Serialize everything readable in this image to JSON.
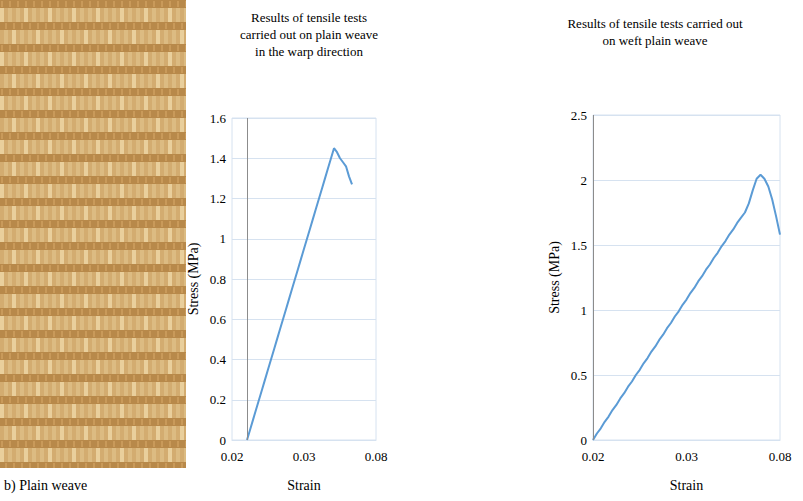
{
  "caption": "b) Plain weave",
  "chart_data": [
    {
      "type": "line",
      "title": "Results of tensile tests carried out on plain weave in the warp direction",
      "x_label": "Strain",
      "y_label": "Stress (MPa)",
      "categories": [
        "0.02",
        null,
        null,
        null,
        null,
        null,
        null,
        null,
        null,
        null,
        null,
        null,
        null,
        null,
        null,
        null,
        null,
        null,
        null,
        null,
        null,
        null,
        null,
        null,
        "0.03",
        null,
        null,
        null,
        null,
        null,
        null,
        null,
        null,
        null,
        null,
        null,
        null,
        null,
        null,
        null,
        null,
        null,
        null,
        null,
        null,
        null,
        null,
        null,
        "0.08"
      ],
      "values": [
        null,
        null,
        null,
        null,
        null,
        0,
        0.05,
        0.1,
        0.15,
        0.2,
        0.25,
        0.3,
        0.35,
        0.4,
        0.45,
        0.5,
        0.55,
        0.6,
        0.65,
        0.7,
        0.75,
        0.8,
        0.85,
        0.9,
        0.95,
        1,
        1.05,
        1.1,
        1.15,
        1.2,
        1.25,
        1.3,
        1.35,
        1.4,
        1.45,
        1.43,
        1.4,
        1.38,
        1.36,
        1.31,
        1.27,
        null,
        null,
        null,
        null,
        null,
        null,
        null,
        null
      ],
      "color": "#5b9bd5",
      "ylim": [
        0,
        1.6
      ],
      "yticks": [
        0,
        0.2,
        0.4,
        0.6,
        0.8,
        1,
        1.2,
        1.4,
        1.6
      ],
      "grid": true
    },
    {
      "type": "line",
      "title": "Results of tensile tests carried out on weft plain weave",
      "x_label": "Strain",
      "y_label": "Stress (MPa)",
      "categories": [
        "0.02",
        null,
        null,
        null,
        null,
        null,
        null,
        null,
        null,
        null,
        null,
        null,
        null,
        null,
        null,
        null,
        null,
        null,
        null,
        null,
        null,
        null,
        null,
        null,
        "0.03",
        null,
        null,
        null,
        null,
        null,
        null,
        null,
        null,
        null,
        null,
        null,
        null,
        null,
        null,
        null,
        null,
        null,
        null,
        null,
        null,
        null,
        null,
        null,
        "0.08"
      ],
      "values": [
        0,
        0.05,
        0.09,
        0.14,
        0.18,
        0.23,
        0.27,
        0.32,
        0.36,
        0.41,
        0.45,
        0.5,
        0.54,
        0.59,
        0.63,
        0.68,
        0.72,
        0.77,
        0.81,
        0.86,
        0.9,
        0.95,
        0.99,
        1.04,
        1.08,
        1.13,
        1.17,
        1.22,
        1.26,
        1.31,
        1.35,
        1.4,
        1.44,
        1.49,
        1.53,
        1.58,
        1.62,
        1.67,
        1.71,
        1.75,
        1.82,
        1.92,
        2.01,
        2.04,
        2.01,
        1.95,
        1.85,
        1.72,
        1.58
      ],
      "color": "#5b9bd5",
      "ylim": [
        0,
        2.5
      ],
      "yticks": [
        0,
        0.5,
        1,
        1.5,
        2,
        2.5
      ],
      "grid": true
    }
  ]
}
